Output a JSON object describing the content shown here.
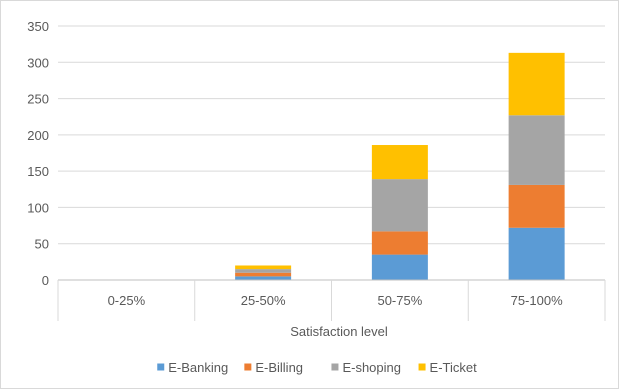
{
  "chart_data": {
    "type": "bar",
    "stacked": true,
    "categories": [
      "0-25%",
      "25-50%",
      "50-75%",
      "75-100%"
    ],
    "series": [
      {
        "name": "E-Banking",
        "color": "#5b9bd5",
        "values": [
          0,
          5,
          35,
          72
        ]
      },
      {
        "name": "E-Billing",
        "color": "#ed7d31",
        "values": [
          0,
          5,
          32,
          59
        ]
      },
      {
        "name": "E-shoping",
        "color": "#a5a5a5",
        "values": [
          0,
          5,
          72,
          96
        ]
      },
      {
        "name": "E-Ticket",
        "color": "#ffc000",
        "values": [
          0,
          5,
          47,
          86
        ]
      }
    ],
    "title": "",
    "xlabel": "Satisfaction level",
    "ylabel": "",
    "ylim": [
      0,
      350
    ],
    "yticks": [
      0,
      50,
      100,
      150,
      200,
      250,
      300,
      350
    ],
    "grid": true,
    "legend_position": "bottom"
  }
}
